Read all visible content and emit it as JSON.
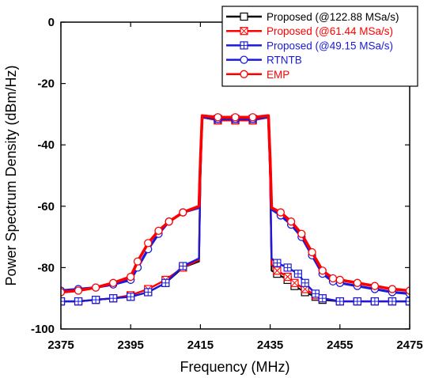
{
  "chart_data": {
    "type": "line",
    "xlabel": "Frequency (MHz)",
    "ylabel": "Power Spectrum Density (dBm/Hz)",
    "xlim": [
      2375,
      2475
    ],
    "ylim": [
      -100,
      0
    ],
    "xticks": [
      "2375",
      "2395",
      "2415",
      "2435",
      "2455",
      "2475"
    ],
    "yticks": [
      "0",
      "-20",
      "-40",
      "-60",
      "-80",
      "-100"
    ],
    "grid": false,
    "legend_position": "top-right",
    "series": [
      {
        "name": "Proposed (@122.88 MSa/s)",
        "color": "#000000",
        "marker": "square",
        "x": [
          2375,
          2380,
          2385,
          2390,
          2395,
          2400,
          2405,
          2410,
          2414.6,
          2415.0,
          2415.5,
          2420,
          2425,
          2430,
          2434.5,
          2435.0,
          2435.4,
          2437,
          2440,
          2442,
          2445,
          2448,
          2450,
          2455,
          2460,
          2465,
          2470,
          2475
        ],
        "y": [
          -91,
          -91,
          -90.5,
          -90,
          -89.5,
          -88,
          -85,
          -80,
          -78,
          -50,
          -31,
          -32,
          -32,
          -32,
          -31,
          -50,
          -81,
          -82,
          -84,
          -86,
          -88,
          -89.5,
          -90.5,
          -91,
          -91,
          -91,
          -91,
          -91
        ]
      },
      {
        "name": "Proposed (@61.44 MSa/s)",
        "color": "#ff0000",
        "marker": "square-x",
        "x": [
          2375,
          2380,
          2385,
          2390,
          2395,
          2400,
          2405,
          2410,
          2414.6,
          2415.0,
          2415.5,
          2420,
          2425,
          2430,
          2434.5,
          2435.0,
          2435.4,
          2437,
          2440,
          2442,
          2445,
          2448,
          2450,
          2455,
          2460,
          2465,
          2470,
          2475
        ],
        "y": [
          -91,
          -91,
          -90.5,
          -90,
          -89,
          -87,
          -84,
          -80,
          -77.5,
          -50,
          -31,
          -32,
          -32,
          -32,
          -31,
          -50,
          -79,
          -81,
          -83,
          -85,
          -87,
          -89,
          -90,
          -91,
          -91,
          -91,
          -91,
          -91
        ]
      },
      {
        "name": "Proposed (@49.15 MSa/s)",
        "color": "#1a1adc",
        "marker": "square-plus",
        "x": [
          2375,
          2380,
          2385,
          2390,
          2395,
          2400,
          2405,
          2410,
          2414.6,
          2415.0,
          2415.5,
          2420,
          2425,
          2430,
          2434.5,
          2435.0,
          2435.4,
          2437,
          2440,
          2443,
          2445,
          2448,
          2450,
          2455,
          2460,
          2465,
          2470,
          2475
        ],
        "y": [
          -91,
          -91,
          -90.5,
          -90,
          -89.5,
          -88,
          -85,
          -79.5,
          -77,
          -50,
          -31,
          -31.5,
          -31.5,
          -31.5,
          -31,
          -50,
          -77,
          -78.5,
          -80,
          -82,
          -85,
          -88.5,
          -90,
          -91,
          -91,
          -91,
          -91,
          -91
        ]
      },
      {
        "name": "RTNTB",
        "color": "#1a1adc",
        "marker": "circle",
        "x": [
          2375,
          2380,
          2385,
          2390,
          2395,
          2397,
          2400,
          2403,
          2406,
          2410,
          2414.6,
          2415.0,
          2415.5,
          2420,
          2425,
          2430,
          2434.5,
          2435.0,
          2435.4,
          2438,
          2441,
          2444,
          2447,
          2450,
          2453,
          2455,
          2460,
          2465,
          2470,
          2475
        ],
        "y": [
          -87.5,
          -87,
          -86.5,
          -85.5,
          -84,
          -80,
          -74,
          -69,
          -65,
          -62,
          -60.5,
          -45,
          -31,
          -31.5,
          -31.5,
          -31.5,
          -31,
          -45,
          -61,
          -63,
          -66,
          -70,
          -76,
          -82,
          -84.5,
          -85,
          -86,
          -87,
          -88,
          -88.5
        ]
      },
      {
        "name": "EMP",
        "color": "#ff0000",
        "marker": "circle",
        "x": [
          2375,
          2380,
          2385,
          2390,
          2395,
          2397,
          2400,
          2403,
          2406,
          2410,
          2414.6,
          2415.0,
          2415.5,
          2420,
          2425,
          2430,
          2434.5,
          2435.0,
          2435.4,
          2438,
          2441,
          2444,
          2447,
          2450,
          2453,
          2455,
          2460,
          2465,
          2470,
          2475
        ],
        "y": [
          -88,
          -87.5,
          -86.5,
          -85,
          -83,
          -78,
          -72,
          -68,
          -65,
          -62,
          -60,
          -45,
          -30.5,
          -31,
          -31,
          -31,
          -30.5,
          -45,
          -60.5,
          -62,
          -65,
          -69,
          -75,
          -81,
          -83.5,
          -84,
          -85,
          -86,
          -87,
          -87.5
        ]
      }
    ]
  }
}
